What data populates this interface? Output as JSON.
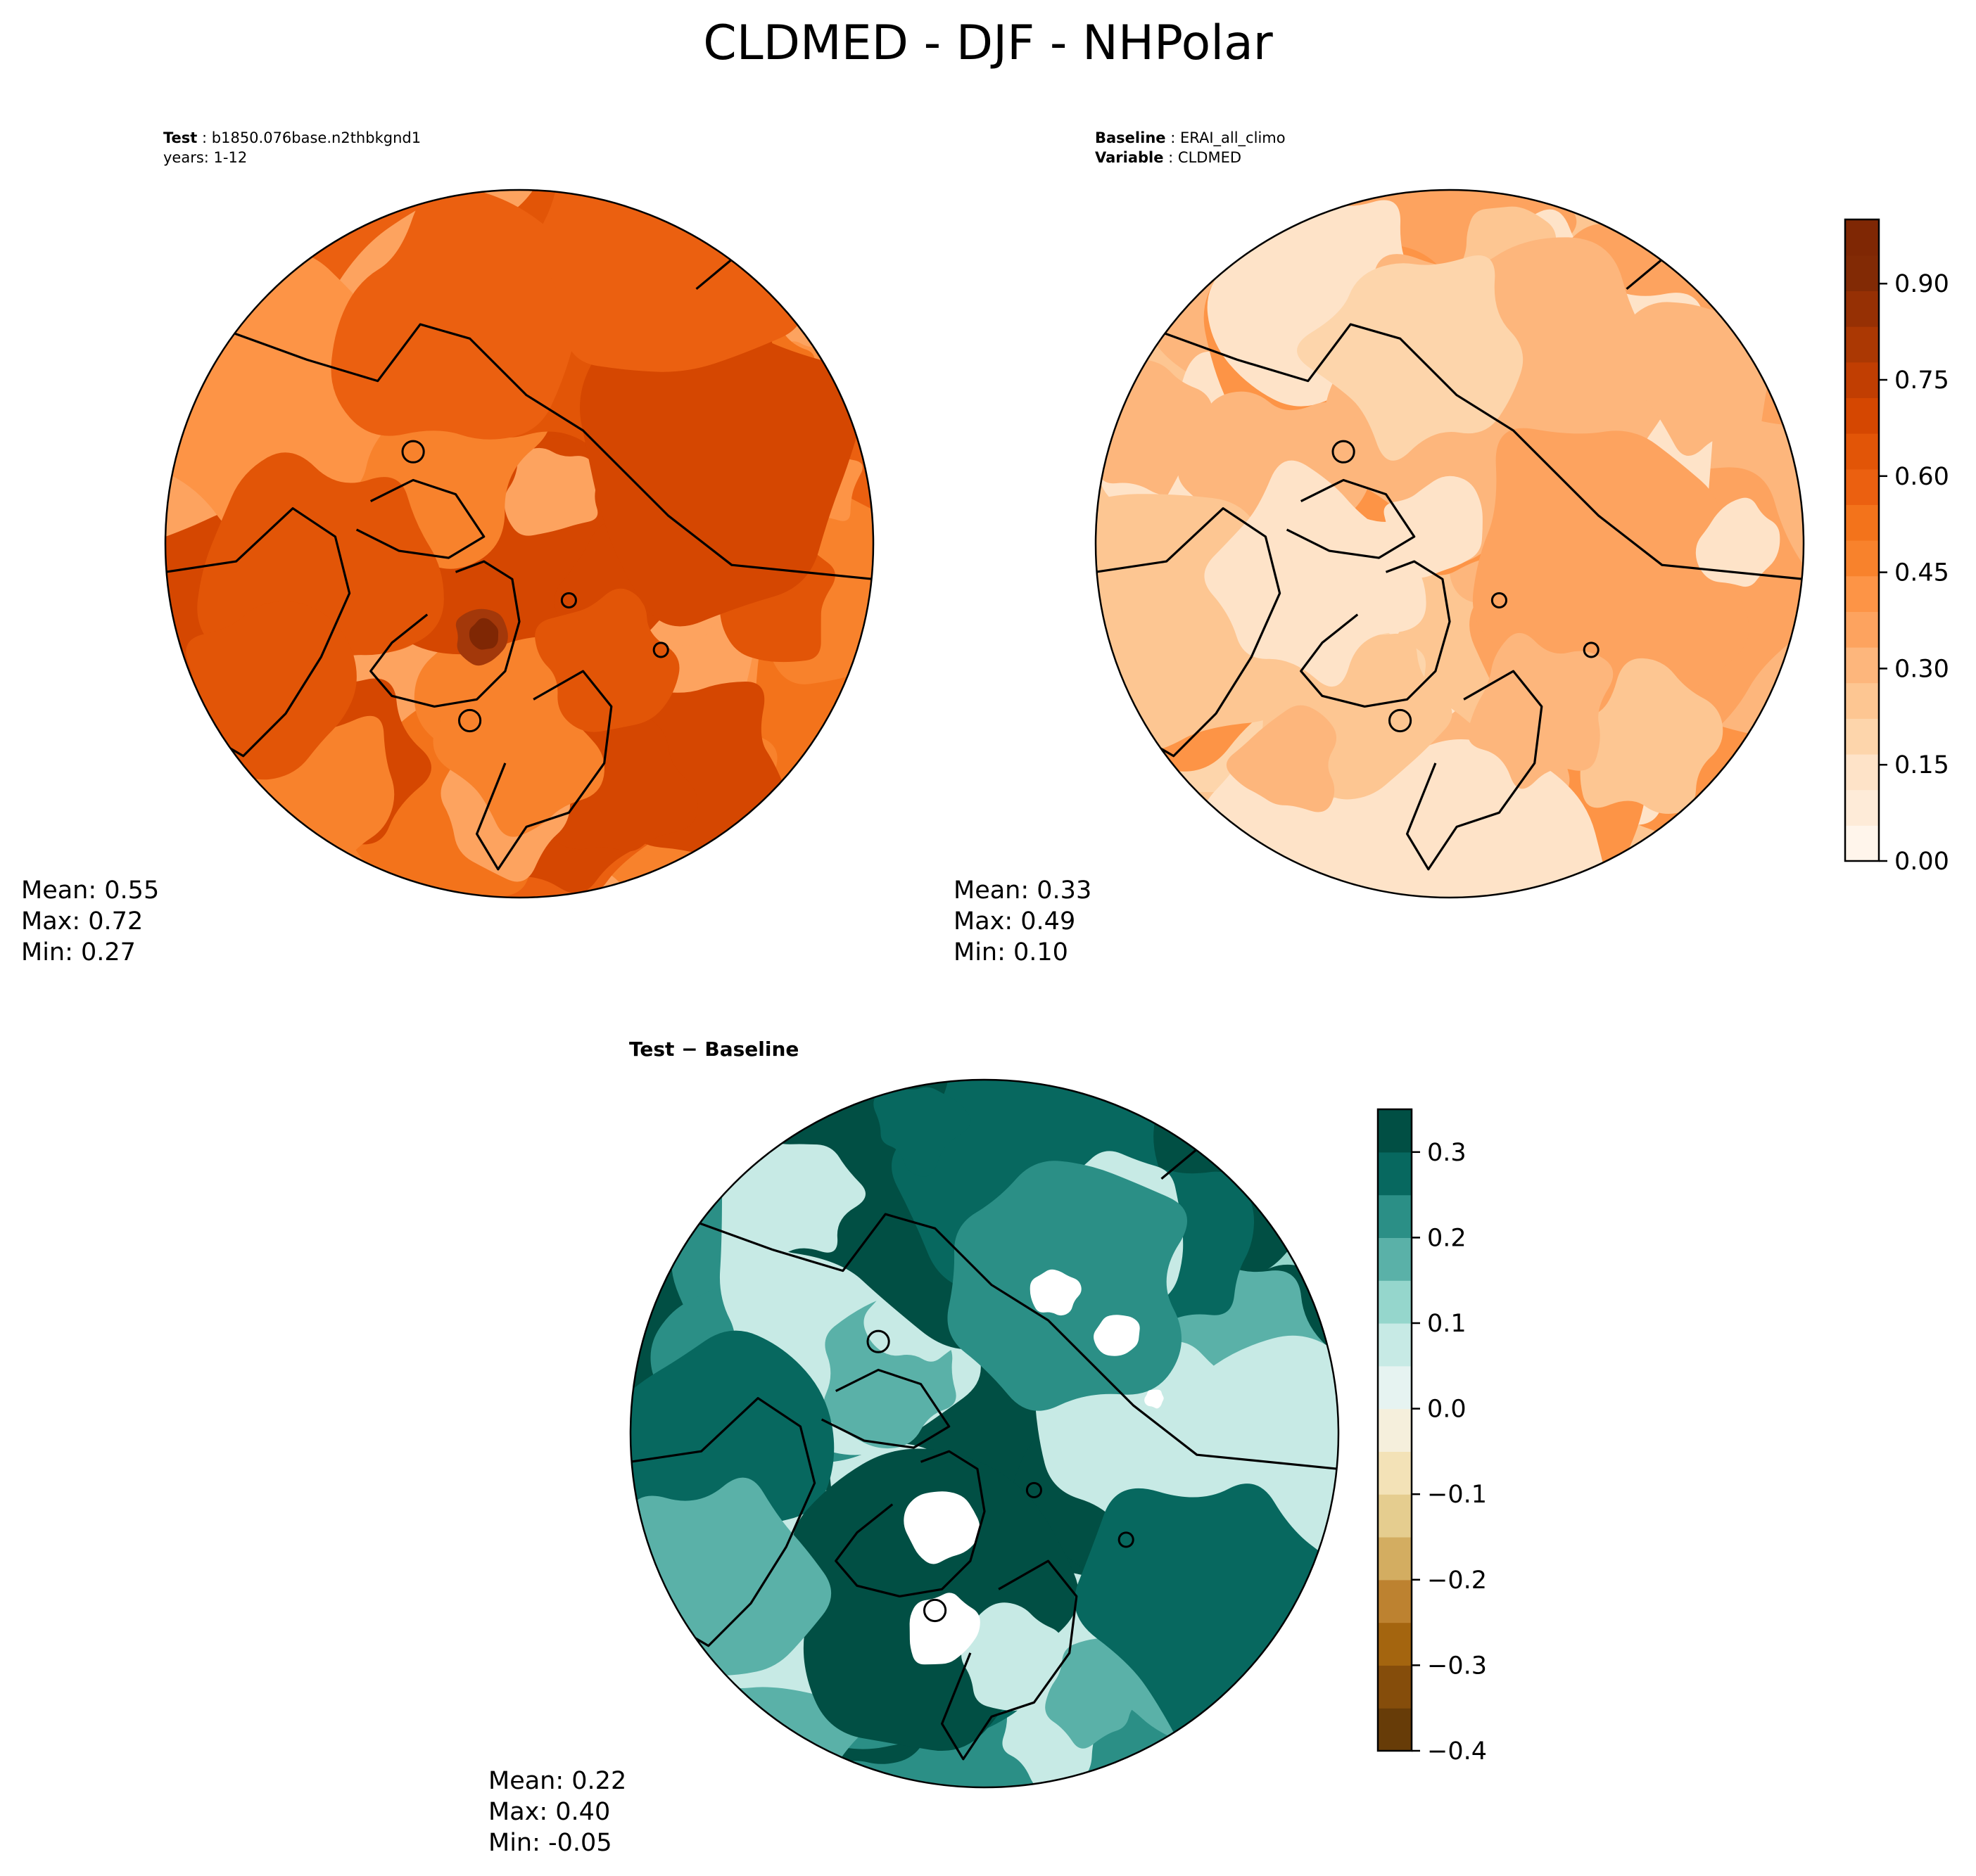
{
  "title": "CLDMED - DJF - NHPolar",
  "panels": {
    "test": {
      "label_key": "Test",
      "label_value": "b1850.076base.n2thbkgnd1",
      "line2": "years: 1-12",
      "stats": {
        "mean": "Mean:  0.55",
        "max": "Max:  0.72",
        "min": "Min:  0.27"
      }
    },
    "baseline": {
      "label_key": "Baseline",
      "label_value": "ERAI_all_climo",
      "line2_key": "Variable",
      "line2_value": "CLDMED",
      "stats": {
        "mean": "Mean:  0.33",
        "max": "Max:  0.49",
        "min": "Min:  0.10"
      }
    },
    "diff": {
      "label": "Test − Baseline",
      "stats": {
        "mean": "Mean:  0.22",
        "max": "Max:  0.40",
        "min": "Min: -0.05"
      }
    }
  },
  "chart_data": [
    {
      "type": "heatmap",
      "projection": "north-polar-stereographic",
      "name": "test",
      "variable": "CLDMED",
      "season": "DJF",
      "mean": 0.55,
      "max": 0.72,
      "min": 0.27,
      "colormap": "Oranges",
      "clim": [
        0,
        1
      ]
    },
    {
      "type": "heatmap",
      "projection": "north-polar-stereographic",
      "name": "baseline",
      "variable": "CLDMED",
      "season": "DJF",
      "mean": 0.33,
      "max": 0.49,
      "min": 0.1,
      "colormap": "Oranges",
      "clim": [
        0,
        1
      ]
    },
    {
      "type": "heatmap",
      "projection": "north-polar-stereographic",
      "name": "difference",
      "mean": 0.22,
      "max": 0.4,
      "min": -0.05,
      "colormap": "BrBG",
      "clim": [
        -0.4,
        0.35
      ]
    }
  ],
  "colorbars": {
    "main": {
      "min": 0.0,
      "max": 1.0,
      "ticks": [
        0.0,
        0.15,
        0.3,
        0.45,
        0.6,
        0.75,
        0.9
      ],
      "tick_labels": [
        "0.00",
        "0.15",
        "0.30",
        "0.45",
        "0.60",
        "0.75",
        "0.90"
      ],
      "colors": [
        "#fff5eb",
        "#feebd8",
        "#fee3c8",
        "#fdd5ab",
        "#fdc692",
        "#fdb67c",
        "#fda35f",
        "#fd9446",
        "#f8822c",
        "#f3731b",
        "#eb6010",
        "#e25507",
        "#d54701",
        "#c13e02",
        "#ab3803",
        "#963004",
        "#822a05",
        "#7f2704"
      ]
    },
    "diff": {
      "min": -0.4,
      "max": 0.35,
      "ticks": [
        0.3,
        0.2,
        0.1,
        0.0,
        -0.1,
        -0.2,
        -0.3,
        -0.4
      ],
      "tick_labels": [
        "0.3",
        "0.2",
        "0.1",
        "0.0",
        "−0.1",
        "−0.2",
        "−0.3",
        "−0.4"
      ],
      "colors": [
        "#673c08",
        "#854d0b",
        "#a4650f",
        "#bd8230",
        "#d3ad61",
        "#e5cd8f",
        "#f3e2b7",
        "#f5efdc",
        "#e6f3f1",
        "#c7eae5",
        "#95d6cc",
        "#5ab1a8",
        "#2b8f86",
        "#07685f",
        "#014f44"
      ]
    }
  },
  "field_colors": {
    "test": [
      "#d54701",
      "#e25507",
      "#eb6010",
      "#f3731b",
      "#f8822c",
      "#fd9446",
      "#fda35f"
    ],
    "baseline": [
      "#fee3c8",
      "#fdd5ab",
      "#fdc692",
      "#fdb67c",
      "#fda35f",
      "#fd9446"
    ],
    "diff": [
      "#c7eae5",
      "#95d6cc",
      "#5ab1a8",
      "#2b8f86",
      "#07685f",
      "#014f44",
      "#ffffff"
    ]
  }
}
